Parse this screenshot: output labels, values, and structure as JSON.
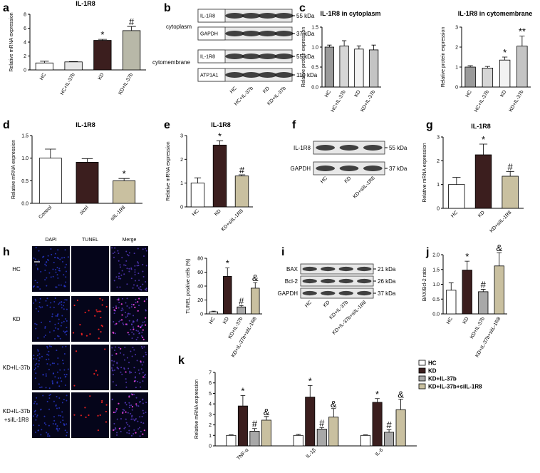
{
  "panel_letters": [
    "a",
    "b",
    "c",
    "d",
    "e",
    "f",
    "g",
    "h",
    "i",
    "j",
    "k"
  ],
  "chart_data": [
    {
      "type": "bar",
      "title": "IL-1R8",
      "ylabel": "Relative mRNA expression",
      "categories": [
        "HC",
        "HC+IL-37b",
        "KD",
        "KD+IL-37b"
      ],
      "values": [
        1.0,
        1.15,
        4.25,
        5.65
      ],
      "errors": [
        0.25,
        0.05,
        0.15,
        0.6
      ],
      "colors": [
        "#ffffff",
        "#e6e6e6",
        "#3b1e1e",
        "#b8b8a8"
      ],
      "annotations": [
        null,
        null,
        "*",
        "#"
      ],
      "ylim": [
        0,
        8
      ],
      "yticks": [
        0,
        2,
        4,
        6,
        8
      ]
    },
    {
      "type": "bar",
      "title": "IL-1R8 in cytoplasm",
      "ylabel": "Relative protein expression",
      "categories": [
        "HC",
        "HC+IL-37b",
        "KD",
        "KD+IL-37b"
      ],
      "values": [
        1.0,
        1.03,
        0.95,
        0.93
      ],
      "errors": [
        0.05,
        0.13,
        0.08,
        0.12
      ],
      "colors": [
        "#9a9a9a",
        "#d6d6d6",
        "#f2f2f2",
        "#c4c4c4"
      ],
      "annotations": [
        null,
        null,
        null,
        null
      ],
      "ylim": [
        0,
        1.5
      ],
      "yticks": [
        {
          "value": 0,
          "label": "0.0"
        },
        {
          "value": 0.5,
          "label": "0.5"
        },
        {
          "value": 1,
          "label": "1.0"
        },
        {
          "value": 1.5,
          "label": "1.5"
        }
      ]
    },
    {
      "type": "bar",
      "title": "IL-1R8 in cytomembrane",
      "ylabel": "Relative protein expression",
      "categories": [
        "HC",
        "HC+IL-37b",
        "KD",
        "KD+IL-37b"
      ],
      "values": [
        1.0,
        0.95,
        1.35,
        2.05
      ],
      "errors": [
        0.07,
        0.08,
        0.15,
        0.5
      ],
      "colors": [
        "#9a9a9a",
        "#d6d6d6",
        "#f2f2f2",
        "#c4c4c4"
      ],
      "annotations": [
        null,
        null,
        "*",
        "**"
      ],
      "ylim": [
        0,
        3
      ],
      "yticks": [
        0,
        1,
        2,
        3
      ]
    },
    {
      "type": "bar",
      "title": "IL-1R8",
      "ylabel": "Relative mRNA expression",
      "categories": [
        "Control",
        "sictrl",
        "siIL-1R8"
      ],
      "values": [
        1.0,
        0.91,
        0.5
      ],
      "errors": [
        0.2,
        0.08,
        0.05
      ],
      "colors": [
        "#ffffff",
        "#3b1e1e",
        "#c9c0a0"
      ],
      "annotations": [
        null,
        null,
        "*"
      ],
      "ylim": [
        0,
        1.5
      ],
      "yticks": [
        {
          "value": 0,
          "label": "0.0"
        },
        {
          "value": 0.5,
          "label": "0.5"
        },
        {
          "value": 1,
          "label": "1.0"
        },
        {
          "value": 1.5,
          "label": "1.5"
        }
      ]
    },
    {
      "type": "bar",
      "title": "IL-1R8",
      "ylabel": "Relative mRNA expression",
      "categories": [
        "HC",
        "KD",
        "KD+siIL-1R8"
      ],
      "values": [
        1.0,
        2.6,
        1.3
      ],
      "errors": [
        0.22,
        0.18,
        0.05
      ],
      "colors": [
        "#ffffff",
        "#3b1e1e",
        "#c9c0a0"
      ],
      "annotations": [
        null,
        "*",
        "#"
      ],
      "ylim": [
        0,
        3
      ],
      "yticks": [
        0,
        1,
        2,
        3
      ]
    },
    {
      "type": "bar",
      "title": "IL-1R8",
      "ylabel": "Relative mRNA expression",
      "categories": [
        "HC",
        "KD",
        "KD+siIL-1R8"
      ],
      "values": [
        1.0,
        2.25,
        1.35
      ],
      "errors": [
        0.3,
        0.45,
        0.2
      ],
      "colors": [
        "#ffffff",
        "#3b1e1e",
        "#c9c0a0"
      ],
      "annotations": [
        null,
        "*",
        "#"
      ],
      "ylim": [
        0,
        3
      ],
      "yticks": [
        0,
        1,
        2,
        3
      ]
    },
    {
      "type": "bar",
      "ylabel": "TUNEL positive cells (%)",
      "categories": [
        "HC",
        "KD",
        "KD+IL-37b",
        "KD+IL-37b+siIL-1R8"
      ],
      "values": [
        3,
        54,
        10,
        37
      ],
      "errors": [
        1,
        12,
        2,
        8
      ],
      "colors": [
        "#ffffff",
        "#3b1e1e",
        "#a8a8a8",
        "#c9c0a0"
      ],
      "annotations": [
        null,
        "*",
        "#",
        "&"
      ],
      "ylim": [
        0,
        80
      ],
      "yticks": [
        0,
        20,
        40,
        60,
        80
      ]
    },
    {
      "type": "bar",
      "ylabel": "BAX/Bcl-2 ratio",
      "categories": [
        "HC",
        "KD",
        "KD+IL-37b",
        "KD+IL-37b+siIL-1R8"
      ],
      "values": [
        0.8,
        1.48,
        0.75,
        1.62
      ],
      "errors": [
        0.25,
        0.3,
        0.08,
        0.45
      ],
      "colors": [
        "#ffffff",
        "#3b1e1e",
        "#a8a8a8",
        "#c9c0a0"
      ],
      "annotations": [
        null,
        "*",
        "#",
        "&"
      ],
      "ylim": [
        0,
        2
      ],
      "yticks": [
        {
          "value": 0,
          "label": "0.0"
        },
        {
          "value": 0.5,
          "label": "0.5"
        },
        {
          "value": 1,
          "label": "1.0"
        },
        {
          "value": 1.5,
          "label": "1.5"
        },
        {
          "value": 2,
          "label": "2.0"
        }
      ]
    },
    {
      "type": "grouped_bar",
      "ylabel": "Relative mRNA expression",
      "categories": [
        "TNF-α",
        "IL-1β",
        "IL-6"
      ],
      "series": [
        {
          "name": "HC",
          "color": "#ffffff",
          "values": [
            1,
            1,
            1
          ],
          "errors": [
            0.05,
            0.1,
            0.05
          ],
          "annotation": null
        },
        {
          "name": "KD",
          "color": "#3b1e1e",
          "values": [
            3.8,
            4.65,
            4.15
          ],
          "errors": [
            1.0,
            1.1,
            0.35
          ],
          "annotation": "*"
        },
        {
          "name": "KD+IL-37b",
          "color": "#a8a8a8",
          "values": [
            1.4,
            1.6,
            1.3
          ],
          "errors": [
            0.25,
            0.15,
            0.25
          ],
          "annotation": "#"
        },
        {
          "name": "KD+IL-37b+siIL-1R8",
          "color": "#c9c0a0",
          "values": [
            2.45,
            2.75,
            3.45
          ],
          "errors": [
            0.35,
            0.8,
            1.0
          ],
          "annotation": "&"
        }
      ],
      "ylim": [
        0,
        7
      ],
      "yticks": [
        0,
        1,
        2,
        3,
        4,
        5,
        6,
        7
      ]
    }
  ],
  "blots": [
    {
      "groups": [
        "cytoplasm",
        "cytomembrane"
      ],
      "rows": [
        {
          "label": "IL-1R8",
          "size": "55 kDa"
        },
        {
          "label": "GAPDH",
          "size": "37 kDa"
        },
        {
          "label": "IL-1R8",
          "size": "55 kDa"
        },
        {
          "label": "ATP1A1",
          "size": "110 kDa"
        }
      ],
      "lanes": [
        "HC",
        "HC+IL-37b",
        "KD",
        "KD+IL-37b"
      ]
    },
    {
      "rows": [
        {
          "label": "IL-1R8",
          "size": "55 kDa"
        },
        {
          "label": "GAPDH",
          "size": "37 kDa"
        }
      ],
      "lanes": [
        "HC",
        "KD",
        "KD+siIL-1R8"
      ]
    },
    {
      "rows": [
        {
          "label": "BAX",
          "size": "21 kDa"
        },
        {
          "label": "Bcl-2",
          "size": "26 kDa"
        },
        {
          "label": "GAPDH",
          "size": "37 kDa"
        }
      ],
      "lanes": [
        "HC",
        "KD",
        "KD+IL-37b",
        "KD+IL-37b+siIL-1R8"
      ]
    }
  ],
  "images": {
    "columns": [
      "DAPI",
      "TUNEL",
      "Merge"
    ],
    "rows": [
      [
        "HC"
      ],
      [
        "KD"
      ],
      [
        "KD+IL-37b"
      ],
      [
        "KD+IL-37b",
        "+siIL-1R8"
      ]
    ]
  }
}
